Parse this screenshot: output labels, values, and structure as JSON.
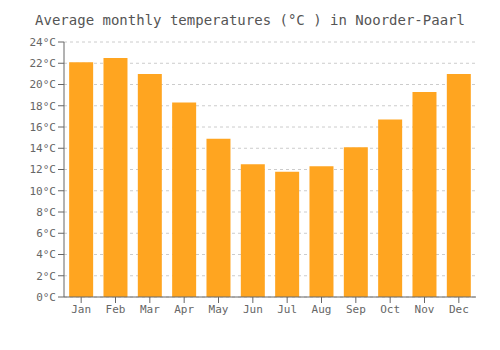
{
  "chart_data": {
    "type": "bar",
    "title": "Average monthly temperatures (°C ) in Noorder-Paarl",
    "categories": [
      "Jan",
      "Feb",
      "Mar",
      "Apr",
      "May",
      "Jun",
      "Jul",
      "Aug",
      "Sep",
      "Oct",
      "Nov",
      "Dec"
    ],
    "values": [
      22.1,
      22.5,
      21.0,
      18.3,
      14.9,
      12.5,
      11.8,
      12.3,
      14.1,
      16.7,
      19.3,
      21.0
    ],
    "color": "#FFA520",
    "ylim": [
      0,
      24
    ],
    "yticks": [
      {
        "value": 0,
        "label": "0°C"
      },
      {
        "value": 2,
        "label": "2°C"
      },
      {
        "value": 4,
        "label": "4°C"
      },
      {
        "value": 6,
        "label": "6°C"
      },
      {
        "value": 8,
        "label": "8°C"
      },
      {
        "value": 10,
        "label": "10°C"
      },
      {
        "value": 12,
        "label": "12°C"
      },
      {
        "value": 14,
        "label": "14°C"
      },
      {
        "value": 16,
        "label": "16°C"
      },
      {
        "value": 18,
        "label": "18°C"
      },
      {
        "value": 20,
        "label": "20°C"
      },
      {
        "value": 22,
        "label": "22°C"
      },
      {
        "value": 24,
        "label": "24°C"
      }
    ],
    "grid": true
  }
}
